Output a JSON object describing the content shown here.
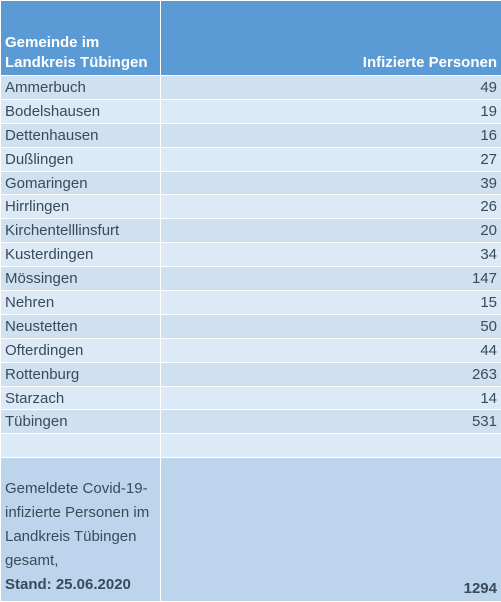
{
  "header": {
    "col_gemeinde": "Gemeinde im Landkreis Tübingen",
    "col_infizierte": "Infizierte Personen"
  },
  "rows": [
    {
      "gemeinde": "Ammerbuch",
      "infizierte": "49"
    },
    {
      "gemeinde": "Bodelshausen",
      "infizierte": "19"
    },
    {
      "gemeinde": "Dettenhausen",
      "infizierte": "16"
    },
    {
      "gemeinde": "Dußlingen",
      "infizierte": "27"
    },
    {
      "gemeinde": "Gomaringen",
      "infizierte": "39"
    },
    {
      "gemeinde": "Hirrlingen",
      "infizierte": "26"
    },
    {
      "gemeinde": "Kirchentelllinsfurt",
      "infizierte": "20"
    },
    {
      "gemeinde": "Kusterdingen",
      "infizierte": "34"
    },
    {
      "gemeinde": "Mössingen",
      "infizierte": "147"
    },
    {
      "gemeinde": "Nehren",
      "infizierte": "15"
    },
    {
      "gemeinde": "Neustetten",
      "infizierte": "50"
    },
    {
      "gemeinde": "Ofterdingen",
      "infizierte": "44"
    },
    {
      "gemeinde": "Rottenburg",
      "infizierte": "263"
    },
    {
      "gemeinde": "Starzach",
      "infizierte": "14"
    },
    {
      "gemeinde": "Tübingen",
      "infizierte": "531"
    }
  ],
  "total": {
    "label": "Gemeldete Covid-19-infizierte Personen im Landkreis Tübingen gesamt,",
    "stand": "Stand: 25.06.2020",
    "value": "1294"
  }
}
